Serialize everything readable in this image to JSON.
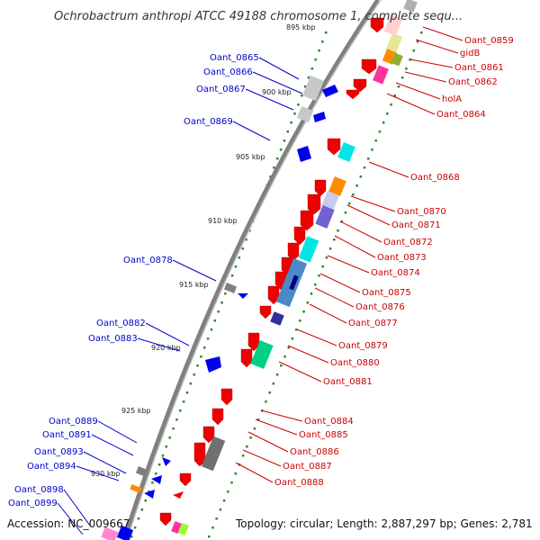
{
  "title": "Ochrobactrum anthropi ATCC 49188 chromosome 1, complete sequ...",
  "footer": {
    "accession": "Accession: NC_009667",
    "topology": "Topology: circular; Length: 2,887,297 bp; Genes: 2,781"
  },
  "colors": {
    "right_label": "#cc0000",
    "left_label": "#0000cc",
    "backbone": "#808080",
    "tick": "#2a8a2a"
  },
  "scale_labels": [
    "895 kbp",
    "900 kbp",
    "905 kbp",
    "910 kbp",
    "915 kbp",
    "920 kbp",
    "925 kbp",
    "930 kbp"
  ],
  "right_labels": [
    "Oant_0859",
    "gidB",
    "Oant_0861",
    "Oant_0862",
    "holA",
    "Oant_0864",
    "Oant_0868",
    "Oant_0870",
    "Oant_0871",
    "Oant_0872",
    "Oant_0873",
    "Oant_0874",
    "Oant_0875",
    "Oant_0876",
    "Oant_0877",
    "Oant_0879",
    "Oant_0880",
    "Oant_0881",
    "Oant_0884",
    "Oant_0885",
    "Oant_0886",
    "Oant_0887",
    "Oant_0888"
  ],
  "left_labels": [
    "Oant_0865",
    "Oant_0866",
    "Oant_0867",
    "Oant_0869",
    "Oant_0878",
    "Oant_0882",
    "Oant_0883",
    "Oant_0889",
    "Oant_0891",
    "Oant_0893",
    "Oant_0894",
    "Oant_0898",
    "Oant_0899"
  ]
}
